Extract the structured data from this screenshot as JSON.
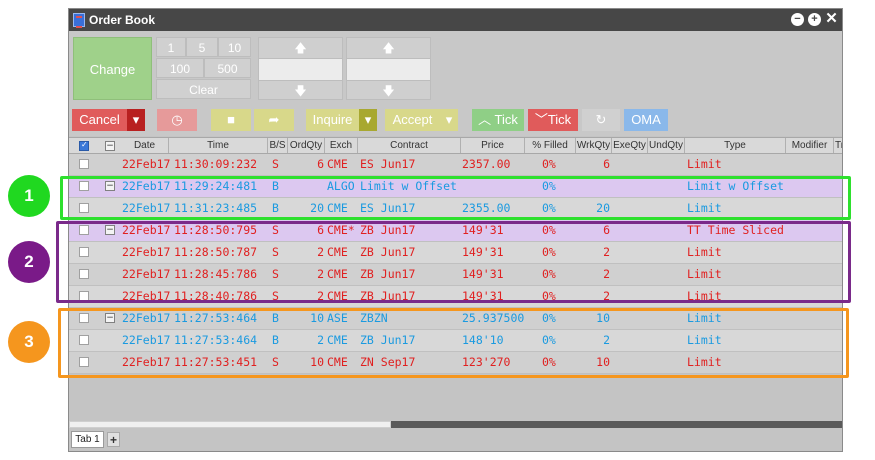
{
  "window": {
    "title": "Order Book"
  },
  "toolbar": {
    "change_label": "Change",
    "qty_buttons": [
      "1",
      "5",
      "10",
      "100",
      "500"
    ],
    "clear_label": "Clear",
    "up_arrow": "🡅",
    "down_arrow": "🡇"
  },
  "actions": {
    "cancel": "Cancel",
    "inquire": "Inquire",
    "accept": "Accept",
    "up_tick": "Tick",
    "down_tick": "Tick",
    "oma": "OMA"
  },
  "columns": [
    "Date",
    "Time",
    "B/S",
    "OrdQty",
    "Exch",
    "Contract",
    "Price",
    "% Filled",
    "WrkQty",
    "ExeQty",
    "UndQty",
    "Type",
    "Modifier",
    "Tr"
  ],
  "rows": [
    {
      "date": "22Feb17",
      "time": "11:30:09:232",
      "bs": "S",
      "ordqty": "6",
      "exch": "CME",
      "contract": "ES Jun17",
      "price": "2357.00",
      "filled": "0%",
      "wrkqty": "6",
      "exeqty": "",
      "type": "Limit",
      "color": "red",
      "expander": false,
      "style": "even"
    },
    {
      "date": "22Feb17",
      "time": "11:29:24:481",
      "bs": "B",
      "ordqty": "",
      "exch": "ALGO",
      "contract": "Limit w Offset",
      "price": "",
      "filled": "0%",
      "wrkqty": "",
      "exeqty": "",
      "type": "Limit w Offset",
      "color": "blue",
      "expander": true,
      "style": "parent"
    },
    {
      "date": "22Feb17",
      "time": "11:31:23:485",
      "bs": "B",
      "ordqty": "20",
      "exch": "CME",
      "contract": "ES Jun17",
      "price": "2355.00",
      "filled": "0%",
      "wrkqty": "20",
      "exeqty": "",
      "type": "Limit",
      "color": "blue",
      "expander": false,
      "style": "odd"
    },
    {
      "date": "22Feb17",
      "time": "11:28:50:795",
      "bs": "S",
      "ordqty": "6",
      "exch": "CME*",
      "contract": "ZB Jun17",
      "price": "149'31",
      "filled": "0%",
      "wrkqty": "6",
      "exeqty": "",
      "type": "TT Time Sliced",
      "color": "red",
      "expander": true,
      "style": "parent"
    },
    {
      "date": "22Feb17",
      "time": "11:28:50:787",
      "bs": "S",
      "ordqty": "2",
      "exch": "CME",
      "contract": "ZB Jun17",
      "price": "149'31",
      "filled": "0%",
      "wrkqty": "2",
      "exeqty": "",
      "type": "Limit",
      "color": "red",
      "expander": false,
      "style": "odd"
    },
    {
      "date": "22Feb17",
      "time": "11:28:45:786",
      "bs": "S",
      "ordqty": "2",
      "exch": "CME",
      "contract": "ZB Jun17",
      "price": "149'31",
      "filled": "0%",
      "wrkqty": "2",
      "exeqty": "",
      "type": "Limit",
      "color": "red",
      "expander": false,
      "style": "even"
    },
    {
      "date": "22Feb17",
      "time": "11:28:40:786",
      "bs": "S",
      "ordqty": "2",
      "exch": "CME",
      "contract": "ZB Jun17",
      "price": "149'31",
      "filled": "0%",
      "wrkqty": "2",
      "exeqty": "",
      "type": "Limit",
      "color": "red",
      "expander": false,
      "style": "odd"
    },
    {
      "date": "22Feb17",
      "time": "11:27:53:464",
      "bs": "B",
      "ordqty": "10",
      "exch": "ASE",
      "contract": "ZBZN",
      "price": "25.937500",
      "filled": "0%",
      "wrkqty": "10",
      "exeqty": "",
      "type": "Limit",
      "color": "blue",
      "expander": true,
      "style": "even"
    },
    {
      "date": "22Feb17",
      "time": "11:27:53:464",
      "bs": "B",
      "ordqty": "2",
      "exch": "CME",
      "contract": "ZB Jun17",
      "price": "148'10",
      "filled": "0%",
      "wrkqty": "2",
      "exeqty": "",
      "type": "Limit",
      "color": "blue",
      "expander": false,
      "style": "odd"
    },
    {
      "date": "22Feb17",
      "time": "11:27:53:451",
      "bs": "S",
      "ordqty": "10",
      "exch": "CME",
      "contract": "ZN Sep17",
      "price": "123'270",
      "filled": "0%",
      "wrkqty": "10",
      "exeqty": "",
      "type": "Limit",
      "color": "red",
      "expander": false,
      "style": "even"
    }
  ],
  "tabs": {
    "tab1": "Tab 1",
    "add": "+"
  },
  "callouts": [
    "1",
    "2",
    "3"
  ],
  "colors": {
    "buy": "#1a9ae0",
    "sell": "#e02020",
    "callout1": "#20d820",
    "callout2": "#7a1a88",
    "callout3": "#f5961e"
  }
}
